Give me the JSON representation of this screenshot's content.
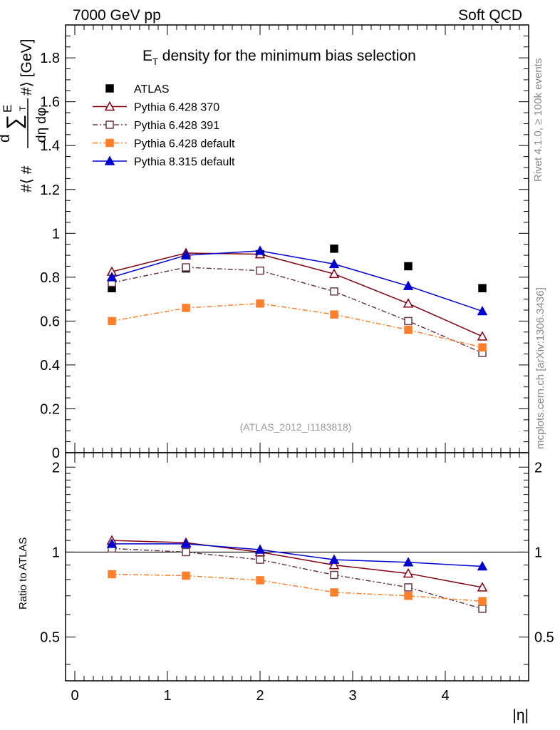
{
  "header": {
    "left": "7000 GeV pp",
    "right": "Soft QCD"
  },
  "side": {
    "rivet": "Rivet 4.1.0, ≥ 100k events",
    "mcplots": "mcplots.cern.ch [arXiv:1306.3436]"
  },
  "ylabel_top": {
    "part1": "#⟨ #",
    "part2": "d",
    "part3": "∑",
    "part4": "E",
    "part5": "T",
    "part6": "#⟩ [GeV]",
    "part7": "dη dφ"
  },
  "chart_data": [
    {
      "type": "scatter",
      "panel": "main",
      "title_prefix": "E",
      "title_sub": "T",
      "title_rest": " density  for the minimum bias selection",
      "watermark": "(ATLAS_2012_I1183818)",
      "xlim": [
        -0.1,
        4.9
      ],
      "ylim": [
        0,
        1.95
      ],
      "yticks": [
        0,
        0.2,
        0.4,
        0.6,
        0.8,
        1,
        1.2,
        1.4,
        1.6,
        1.8
      ],
      "ytick_labels": [
        "0",
        "0.2",
        "0.4",
        "0.6",
        "0.8",
        "1",
        "1.2",
        "1.4",
        "1.6",
        "1.8"
      ],
      "x": [
        0.4,
        1.2,
        2.0,
        2.8,
        3.6,
        4.4
      ],
      "series": [
        {
          "name": "ATLAS",
          "color": "#000000",
          "marker": "square-filled",
          "line": "none",
          "values": [
            0.75,
            0.84,
            0.905,
            0.93,
            0.85,
            0.75
          ]
        },
        {
          "name": "Pythia 6.428 370",
          "color": "#800010",
          "marker": "triangle-open",
          "line": "solid",
          "values": [
            0.825,
            0.91,
            0.905,
            0.815,
            0.68,
            0.53
          ]
        },
        {
          "name": "Pythia 6.428 391",
          "color": "#6b3a4a",
          "marker": "square-open",
          "line": "dashdot",
          "values": [
            0.775,
            0.845,
            0.83,
            0.735,
            0.6,
            0.455
          ]
        },
        {
          "name": "Pythia 6.428 default",
          "color": "#ff7f2a",
          "marker": "square-filled",
          "line": "dashdot",
          "values": [
            0.6,
            0.66,
            0.68,
            0.63,
            0.56,
            0.48
          ]
        },
        {
          "name": "Pythia 8.315 default",
          "color": "#0000d0",
          "marker": "triangle-filled",
          "line": "solid",
          "values": [
            0.8,
            0.9,
            0.92,
            0.86,
            0.76,
            0.645
          ]
        }
      ]
    },
    {
      "type": "line",
      "panel": "ratio",
      "ylabel": "Ratio to ATLAS",
      "xlabel": "|η|",
      "xlim": [
        -0.1,
        4.9
      ],
      "ylim": [
        0.35,
        2.25
      ],
      "yticks": [
        0.5,
        1,
        2
      ],
      "ytick_labels": [
        "0.5",
        "1",
        "2"
      ],
      "xticks": [
        0,
        1,
        2,
        3,
        4
      ],
      "xtick_labels": [
        "0",
        "1",
        "2",
        "3",
        "4"
      ],
      "reference": 1,
      "x": [
        0.4,
        1.2,
        2.0,
        2.8,
        3.6,
        4.4
      ],
      "series": [
        {
          "name": "Pythia 6.428 370",
          "values": [
            1.1,
            1.08,
            1.0,
            0.9,
            0.84,
            0.75
          ]
        },
        {
          "name": "Pythia 6.428 391",
          "values": [
            1.03,
            1.0,
            0.94,
            0.83,
            0.75,
            0.63
          ]
        },
        {
          "name": "Pythia 6.428 default",
          "values": [
            0.835,
            0.825,
            0.795,
            0.72,
            0.7,
            0.67
          ]
        },
        {
          "name": "Pythia 8.315 default",
          "values": [
            1.07,
            1.07,
            1.02,
            0.94,
            0.92,
            0.89
          ]
        }
      ]
    }
  ]
}
